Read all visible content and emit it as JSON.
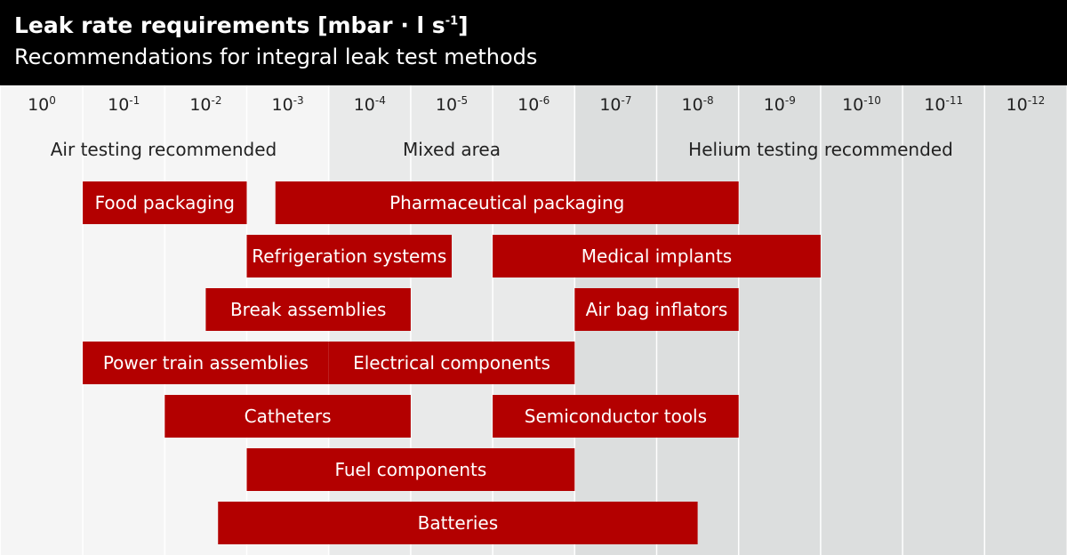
{
  "header": {
    "title_main": "Leak rate requirements [mbar · l s",
    "title_sup": "-1",
    "title_end": "]",
    "subtitle": "Recommendations for integral leak test methods"
  },
  "colors": {
    "header_bg": "#000000",
    "bar": "#b30000",
    "bar_text": "#ffffff",
    "zone_air": "#f5f5f5",
    "zone_mixed": "#e9eaea",
    "zone_helium": "#dcdede",
    "gridline": "#ffffff",
    "text": "#222222"
  },
  "chart_data": {
    "type": "bar",
    "orientation": "horizontal-range",
    "x_scale": "log",
    "x_direction": "decreasing",
    "x_ticks": [
      {
        "base": "10",
        "exp": "0"
      },
      {
        "base": "10",
        "exp": "-1"
      },
      {
        "base": "10",
        "exp": "-2"
      },
      {
        "base": "10",
        "exp": "-3"
      },
      {
        "base": "10",
        "exp": "-4"
      },
      {
        "base": "10",
        "exp": "-5"
      },
      {
        "base": "10",
        "exp": "-6"
      },
      {
        "base": "10",
        "exp": "-7"
      },
      {
        "base": "10",
        "exp": "-8"
      },
      {
        "base": "10",
        "exp": "-9"
      },
      {
        "base": "10",
        "exp": "-10"
      },
      {
        "base": "10",
        "exp": "-11"
      },
      {
        "base": "10",
        "exp": "-12"
      }
    ],
    "zones": [
      {
        "label": "Air testing recommended",
        "from_exp": 0.5,
        "to_exp": -3.5
      },
      {
        "label": "Mixed area",
        "from_exp": -3.5,
        "to_exp": -6.5
      },
      {
        "label": "Helium testing recommended",
        "from_exp": -6.5,
        "to_exp": -12.5
      }
    ],
    "bars": [
      {
        "label": "Food packaging",
        "row": 0,
        "from_exp": -0.5,
        "to_exp": -2.5
      },
      {
        "label": "Pharmaceutical packaging",
        "row": 0,
        "from_exp": -2.85,
        "to_exp": -8.5
      },
      {
        "label": "Refrigeration systems",
        "row": 1,
        "from_exp": -2.5,
        "to_exp": -5
      },
      {
        "label": "Medical implants",
        "row": 1,
        "from_exp": -5.5,
        "to_exp": -9.5
      },
      {
        "label": "Break assemblies",
        "row": 2,
        "from_exp": -2,
        "to_exp": -4.5
      },
      {
        "label": "Air bag inflators",
        "row": 2,
        "from_exp": -6.5,
        "to_exp": -8.5
      },
      {
        "label": "Power train assemblies",
        "row": 3,
        "from_exp": -0.5,
        "to_exp": -3.5
      },
      {
        "label": "Electrical components",
        "row": 3,
        "from_exp": -3.5,
        "to_exp": -6.5
      },
      {
        "label": "Catheters",
        "row": 4,
        "from_exp": -1.5,
        "to_exp": -4.5
      },
      {
        "label": "Semiconductor tools",
        "row": 4,
        "from_exp": -5.5,
        "to_exp": -8.5
      },
      {
        "label": "Fuel components",
        "row": 5,
        "from_exp": -2.5,
        "to_exp": -6.5
      },
      {
        "label": "Batteries",
        "row": 6,
        "from_exp": -2.15,
        "to_exp": -8
      }
    ]
  }
}
